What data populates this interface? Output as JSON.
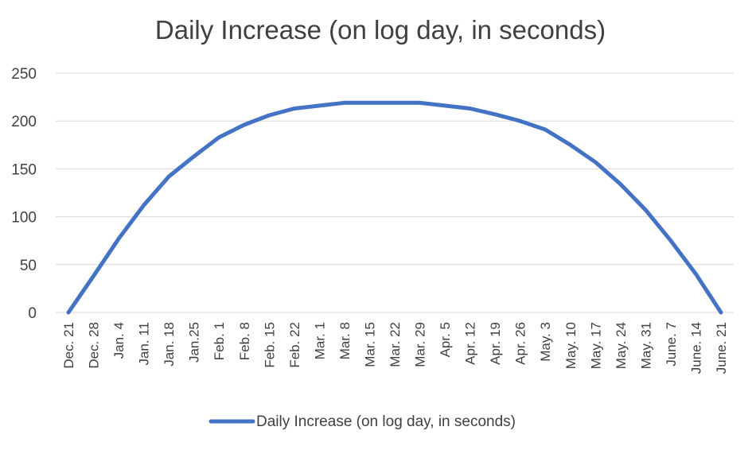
{
  "chart_data": {
    "type": "line",
    "title": "Daily Increase (on log day, in seconds)",
    "xlabel": "",
    "ylabel": "",
    "ylim": [
      0,
      250
    ],
    "yticks": [
      0,
      50,
      100,
      150,
      200,
      250
    ],
    "grid": true,
    "legend_position": "bottom",
    "categories": [
      "Dec. 21",
      "Dec. 28",
      "Jan. 4",
      "Jan. 11",
      "Jan. 18",
      "Jan.25",
      "Feb. 1",
      "Feb. 8",
      "Feb. 15",
      "Feb. 22",
      "Mar. 1",
      "Mar. 8",
      "Mar. 15",
      "Mar. 22",
      "Mar. 29",
      "Apr. 5",
      "Apr. 12",
      "Apr. 19",
      "Apr. 26",
      "May. 3",
      "May. 10",
      "May. 17",
      "May. 24",
      "May. 31",
      "June. 7",
      "June. 14",
      "June. 21"
    ],
    "series": [
      {
        "name": "Daily Increase (on log day, in seconds)",
        "color": "#4472c4",
        "values": [
          0,
          38,
          77,
          112,
          142,
          163,
          183,
          196,
          206,
          213,
          216,
          219,
          219,
          219,
          219,
          216,
          213,
          207,
          200,
          191,
          175,
          157,
          134,
          107,
          75,
          40,
          0
        ]
      }
    ]
  }
}
